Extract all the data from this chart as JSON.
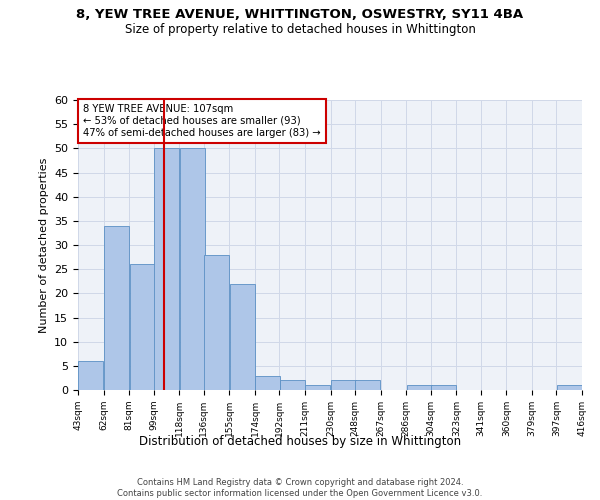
{
  "title1": "8, YEW TREE AVENUE, WHITTINGTON, OSWESTRY, SY11 4BA",
  "title2": "Size of property relative to detached houses in Whittington",
  "xlabel": "Distribution of detached houses by size in Whittington",
  "ylabel": "Number of detached properties",
  "bar_left_edges": [
    43,
    62,
    81,
    99,
    118,
    136,
    155,
    174,
    192,
    211,
    230,
    248,
    267,
    286,
    304,
    323,
    341,
    360,
    379,
    397
  ],
  "bar_heights": [
    6,
    34,
    26,
    50,
    50,
    28,
    22,
    3,
    2,
    1,
    2,
    2,
    0,
    1,
    1,
    0,
    0,
    0,
    0,
    1
  ],
  "bin_width": 19,
  "bar_color": "#aec6e8",
  "bar_edge_color": "#5a8fc4",
  "tick_labels": [
    "43sqm",
    "62sqm",
    "81sqm",
    "99sqm",
    "118sqm",
    "136sqm",
    "155sqm",
    "174sqm",
    "192sqm",
    "211sqm",
    "230sqm",
    "248sqm",
    "267sqm",
    "286sqm",
    "304sqm",
    "323sqm",
    "341sqm",
    "360sqm",
    "379sqm",
    "397sqm",
    "416sqm"
  ],
  "vline_x": 107,
  "vline_color": "#cc0000",
  "ylim": [
    0,
    60
  ],
  "yticks": [
    0,
    5,
    10,
    15,
    20,
    25,
    30,
    35,
    40,
    45,
    50,
    55,
    60
  ],
  "annotation_text": "8 YEW TREE AVENUE: 107sqm\n← 53% of detached houses are smaller (93)\n47% of semi-detached houses are larger (83) →",
  "annotation_box_color": "#ffffff",
  "annotation_box_edge": "#cc0000",
  "grid_color": "#d0d8e8",
  "bg_color": "#eef2f8",
  "footer1": "Contains HM Land Registry data © Crown copyright and database right 2024.",
  "footer2": "Contains public sector information licensed under the Open Government Licence v3.0."
}
